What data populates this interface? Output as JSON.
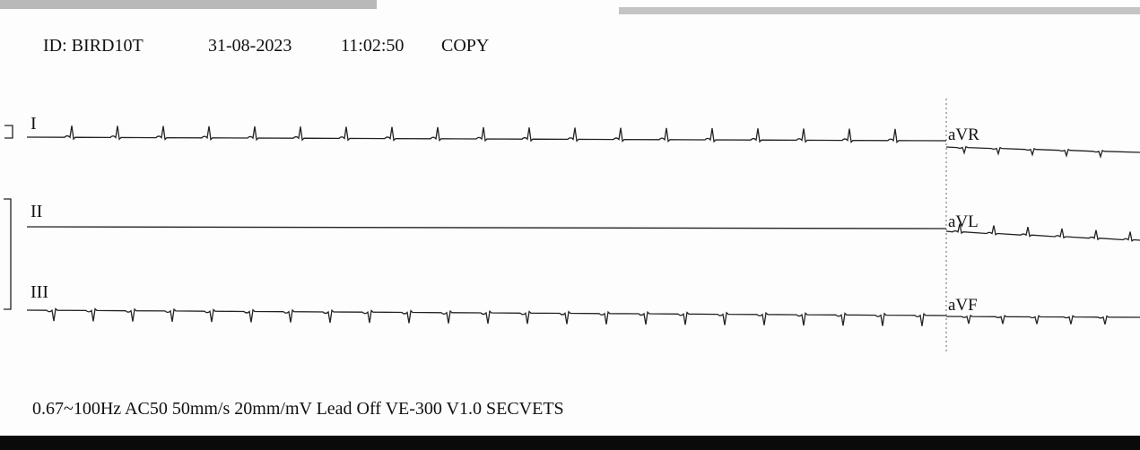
{
  "header": {
    "id": "ID: BIRD10T",
    "date": "31-08-2023",
    "time": "11:02:50",
    "copy": "COPY"
  },
  "leads": [
    "I",
    "II",
    "III",
    "aVR",
    "aVL",
    "aVF"
  ],
  "footer": "0.67~100Hz AC50 50mm/s 20mm/mV Lead Off VE-300 V1.0 SECVETS"
}
